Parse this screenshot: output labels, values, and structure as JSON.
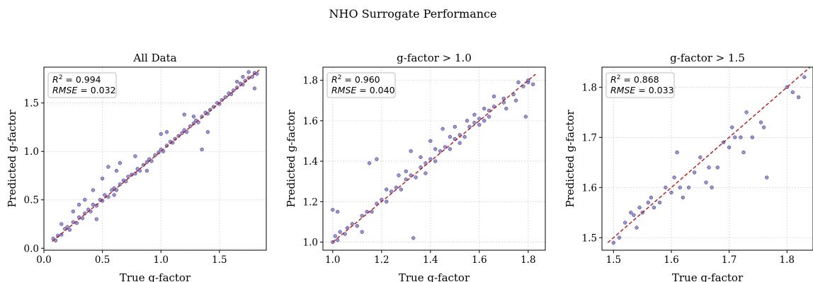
{
  "figure_title": "NHO Surrogate Performance",
  "colors": {
    "point_fill": "#7b6fc9",
    "point_edge": "#2b2a6e",
    "ideal_line": "#b22222",
    "grid": "#d4d4d4"
  },
  "chart_data": [
    {
      "type": "scatter",
      "title": "All Data",
      "xlabel": "True g-factor",
      "ylabel": "Predicted g-factor",
      "xlim": [
        0.0,
        1.9
      ],
      "ylim": [
        -0.02,
        1.87
      ],
      "xticks": [
        "0.0",
        "0.5",
        "1.0",
        "1.5"
      ],
      "xtick_values": [
        0.0,
        0.5,
        1.0,
        1.5
      ],
      "yticks": [
        "0.0",
        "0.5",
        "1.0",
        "1.5"
      ],
      "ytick_values": [
        0.0,
        0.5,
        1.0,
        1.5
      ],
      "grid": true,
      "ideal_line": [
        [
          0.07,
          0.07
        ],
        [
          1.84,
          1.84
        ]
      ],
      "stats": {
        "r2": "0.994",
        "rmse": "0.032"
      },
      "points": [
        [
          0.08,
          0.1
        ],
        [
          0.1,
          0.08
        ],
        [
          0.12,
          0.13
        ],
        [
          0.15,
          0.14
        ],
        [
          0.18,
          0.2
        ],
        [
          0.2,
          0.22
        ],
        [
          0.22,
          0.19
        ],
        [
          0.25,
          0.27
        ],
        [
          0.28,
          0.26
        ],
        [
          0.3,
          0.32
        ],
        [
          0.33,
          0.31
        ],
        [
          0.35,
          0.36
        ],
        [
          0.38,
          0.4
        ],
        [
          0.4,
          0.38
        ],
        [
          0.42,
          0.45
        ],
        [
          0.45,
          0.44
        ],
        [
          0.48,
          0.5
        ],
        [
          0.5,
          0.49
        ],
        [
          0.52,
          0.55
        ],
        [
          0.55,
          0.53
        ],
        [
          0.58,
          0.6
        ],
        [
          0.6,
          0.62
        ],
        [
          0.62,
          0.6
        ],
        [
          0.65,
          0.66
        ],
        [
          0.68,
          0.7
        ],
        [
          0.7,
          0.69
        ],
        [
          0.72,
          0.74
        ],
        [
          0.75,
          0.76
        ],
        [
          0.78,
          0.77
        ],
        [
          0.8,
          0.82
        ],
        [
          0.82,
          0.8
        ],
        [
          0.85,
          0.86
        ],
        [
          0.88,
          0.89
        ],
        [
          0.9,
          0.92
        ],
        [
          0.92,
          0.9
        ],
        [
          0.95,
          0.96
        ],
        [
          0.98,
          0.99
        ],
        [
          1.0,
          1.02
        ],
        [
          1.02,
          1.0
        ],
        [
          1.05,
          1.06
        ],
        [
          1.08,
          1.1
        ],
        [
          1.1,
          1.09
        ],
        [
          1.12,
          1.13
        ],
        [
          1.15,
          1.16
        ],
        [
          1.18,
          1.19
        ],
        [
          1.2,
          1.22
        ],
        [
          1.22,
          1.2
        ],
        [
          1.25,
          1.26
        ],
        [
          1.28,
          1.29
        ],
        [
          1.3,
          1.32
        ],
        [
          1.32,
          1.3
        ],
        [
          1.35,
          1.36
        ],
        [
          1.38,
          1.4
        ],
        [
          1.4,
          1.39
        ],
        [
          1.42,
          1.43
        ],
        [
          1.45,
          1.46
        ],
        [
          1.48,
          1.5
        ],
        [
          1.5,
          1.49
        ],
        [
          1.52,
          1.53
        ],
        [
          1.55,
          1.56
        ],
        [
          1.58,
          1.6
        ],
        [
          1.6,
          1.59
        ],
        [
          1.62,
          1.63
        ],
        [
          1.65,
          1.66
        ],
        [
          1.68,
          1.7
        ],
        [
          1.7,
          1.69
        ],
        [
          1.72,
          1.73
        ],
        [
          1.75,
          1.76
        ],
        [
          1.78,
          1.77
        ],
        [
          1.8,
          1.81
        ],
        [
          1.82,
          1.8
        ],
        [
          0.55,
          0.84
        ],
        [
          0.5,
          0.72
        ],
        [
          0.45,
          0.3
        ],
        [
          0.6,
          0.55
        ],
        [
          0.62,
          0.8
        ],
        [
          0.42,
          0.6
        ],
        [
          0.35,
          0.5
        ],
        [
          1.0,
          1.18
        ],
        [
          1.05,
          1.2
        ],
        [
          1.35,
          1.02
        ],
        [
          1.2,
          1.38
        ],
        [
          1.28,
          1.36
        ],
        [
          1.4,
          1.2
        ],
        [
          1.65,
          1.72
        ],
        [
          1.7,
          1.77
        ],
        [
          1.75,
          1.82
        ],
        [
          1.8,
          1.65
        ],
        [
          0.78,
          0.95
        ],
        [
          0.88,
          0.8
        ],
        [
          0.25,
          0.38
        ],
        [
          0.3,
          0.45
        ],
        [
          0.15,
          0.25
        ],
        [
          0.65,
          0.88
        ]
      ]
    },
    {
      "type": "scatter",
      "title": "g-factor > 1.0",
      "xlabel": "True g-factor",
      "ylabel": "Predicted g-factor",
      "xlim": [
        0.96,
        1.87
      ],
      "ylim": [
        0.96,
        1.865
      ],
      "xticks": [
        "1.0",
        "1.2",
        "1.4",
        "1.6",
        "1.8"
      ],
      "xtick_values": [
        1.0,
        1.2,
        1.4,
        1.6,
        1.8
      ],
      "yticks": [
        "1.0",
        "1.2",
        "1.4",
        "1.6",
        "1.8"
      ],
      "ytick_values": [
        1.0,
        1.2,
        1.4,
        1.6,
        1.8
      ],
      "grid": true,
      "ideal_line": [
        [
          1.0,
          1.0
        ],
        [
          1.83,
          1.83
        ]
      ],
      "stats": {
        "r2": "0.960",
        "rmse": "0.040"
      },
      "points": [
        [
          1.0,
          1.0
        ],
        [
          1.01,
          1.03
        ],
        [
          1.02,
          1.01
        ],
        [
          1.03,
          1.05
        ],
        [
          1.05,
          1.04
        ],
        [
          1.06,
          1.07
        ],
        [
          1.08,
          1.09
        ],
        [
          1.1,
          1.08
        ],
        [
          1.12,
          1.13
        ],
        [
          1.14,
          1.15
        ],
        [
          1.16,
          1.15
        ],
        [
          1.18,
          1.19
        ],
        [
          1.2,
          1.21
        ],
        [
          1.22,
          1.2
        ],
        [
          1.24,
          1.25
        ],
        [
          1.26,
          1.27
        ],
        [
          1.28,
          1.26
        ],
        [
          1.3,
          1.31
        ],
        [
          1.32,
          1.33
        ],
        [
          1.34,
          1.32
        ],
        [
          1.36,
          1.37
        ],
        [
          1.38,
          1.39
        ],
        [
          1.4,
          1.41
        ],
        [
          1.42,
          1.4
        ],
        [
          1.44,
          1.45
        ],
        [
          1.46,
          1.47
        ],
        [
          1.48,
          1.46
        ],
        [
          1.5,
          1.51
        ],
        [
          1.52,
          1.53
        ],
        [
          1.54,
          1.52
        ],
        [
          1.56,
          1.57
        ],
        [
          1.58,
          1.59
        ],
        [
          1.6,
          1.61
        ],
        [
          1.62,
          1.6
        ],
        [
          1.64,
          1.65
        ],
        [
          1.66,
          1.67
        ],
        [
          1.7,
          1.71
        ],
        [
          1.74,
          1.73
        ],
        [
          1.78,
          1.77
        ],
        [
          1.8,
          1.79
        ],
        [
          1.82,
          1.78
        ],
        [
          1.0,
          1.16
        ],
        [
          1.02,
          1.15
        ],
        [
          1.15,
          1.39
        ],
        [
          1.18,
          1.41
        ],
        [
          1.33,
          1.02
        ],
        [
          1.32,
          1.45
        ],
        [
          1.4,
          1.5
        ],
        [
          1.42,
          1.46
        ],
        [
          1.45,
          1.56
        ],
        [
          1.5,
          1.57
        ],
        [
          1.55,
          1.6
        ],
        [
          1.6,
          1.58
        ],
        [
          1.62,
          1.66
        ],
        [
          1.66,
          1.72
        ],
        [
          1.71,
          1.66
        ],
        [
          1.75,
          1.7
        ],
        [
          1.79,
          1.62
        ],
        [
          1.8,
          1.8
        ],
        [
          1.12,
          1.05
        ],
        [
          1.22,
          1.26
        ],
        [
          1.27,
          1.33
        ],
        [
          1.3,
          1.35
        ],
        [
          1.36,
          1.42
        ],
        [
          1.38,
          1.34
        ],
        [
          1.48,
          1.52
        ],
        [
          1.52,
          1.49
        ],
        [
          1.58,
          1.63
        ],
        [
          1.64,
          1.62
        ],
        [
          1.7,
          1.69
        ],
        [
          1.76,
          1.79
        ]
      ]
    },
    {
      "type": "scatter",
      "title": "g-factor > 1.5",
      "xlabel": "True g-factor",
      "ylabel": "Predicted g-factor",
      "xlim": [
        1.48,
        1.845
      ],
      "ylim": [
        1.475,
        1.84
      ],
      "xticks": [
        "1.5",
        "1.6",
        "1.7",
        "1.8"
      ],
      "xtick_values": [
        1.5,
        1.6,
        1.7,
        1.8
      ],
      "yticks": [
        "1.5",
        "1.6",
        "1.7",
        "1.8"
      ],
      "ytick_values": [
        1.5,
        1.6,
        1.7,
        1.8
      ],
      "grid": true,
      "ideal_line": [
        [
          1.49,
          1.49
        ],
        [
          1.84,
          1.84
        ]
      ],
      "stats": {
        "r2": "0.868",
        "rmse": "0.033"
      },
      "points": [
        [
          1.5,
          1.49
        ],
        [
          1.51,
          1.5
        ],
        [
          1.52,
          1.53
        ],
        [
          1.53,
          1.55
        ],
        [
          1.535,
          1.545
        ],
        [
          1.54,
          1.52
        ],
        [
          1.545,
          1.56
        ],
        [
          1.55,
          1.55
        ],
        [
          1.56,
          1.57
        ],
        [
          1.565,
          1.58
        ],
        [
          1.57,
          1.56
        ],
        [
          1.58,
          1.57
        ],
        [
          1.59,
          1.6
        ],
        [
          1.6,
          1.59
        ],
        [
          1.605,
          1.62
        ],
        [
          1.61,
          1.67
        ],
        [
          1.615,
          1.6
        ],
        [
          1.62,
          1.58
        ],
        [
          1.63,
          1.6
        ],
        [
          1.64,
          1.63
        ],
        [
          1.65,
          1.66
        ],
        [
          1.66,
          1.61
        ],
        [
          1.665,
          1.64
        ],
        [
          1.67,
          1.6
        ],
        [
          1.68,
          1.64
        ],
        [
          1.69,
          1.69
        ],
        [
          1.7,
          1.68
        ],
        [
          1.705,
          1.72
        ],
        [
          1.71,
          1.7
        ],
        [
          1.72,
          1.7
        ],
        [
          1.725,
          1.67
        ],
        [
          1.73,
          1.75
        ],
        [
          1.74,
          1.7
        ],
        [
          1.755,
          1.73
        ],
        [
          1.76,
          1.72
        ],
        [
          1.765,
          1.62
        ],
        [
          1.8,
          1.8
        ],
        [
          1.81,
          1.79
        ],
        [
          1.82,
          1.78
        ],
        [
          1.83,
          1.82
        ]
      ]
    }
  ]
}
